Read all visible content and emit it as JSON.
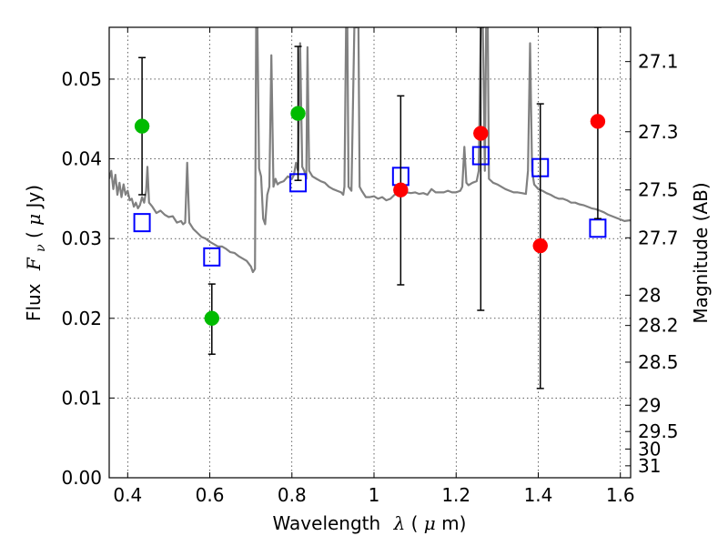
{
  "chart_data": {
    "type": "scatter",
    "xlabel_text": "Wavelength",
    "xlabel_symbol": "λ",
    "xlabel_unit_open": " (",
    "xlabel_unit_mu": "μ",
    "xlabel_unit_rest": "m)",
    "ylabel_text": "Flux",
    "ylabel_symbol": "F",
    "ylabel_sub": "ν",
    "ylabel_unit_open": "  (",
    "ylabel_unit_mu": "μ",
    "ylabel_unit_rest": "Jy)",
    "y2label": "Magnitude (AB)",
    "xlim": [
      0.355,
      1.625
    ],
    "ylim": [
      0.0,
      0.0565
    ],
    "grid": true,
    "xticks": [
      0.4,
      0.6,
      0.8,
      1.0,
      1.2,
      1.4,
      1.6
    ],
    "xtick_labels": [
      "0.4",
      "0.6",
      "0.8",
      "1",
      "1.2",
      "1.4",
      "1.6"
    ],
    "yticks": [
      0.0,
      0.01,
      0.02,
      0.03,
      0.04,
      0.05
    ],
    "ytick_labels": [
      "0.00",
      "0.01",
      "0.02",
      "0.03",
      "0.04",
      "0.05"
    ],
    "y2ticks": [
      {
        "label": "27.1",
        "flux": 0.0522
      },
      {
        "label": "27.3",
        "flux": 0.0434
      },
      {
        "label": "27.5",
        "flux": 0.0361
      },
      {
        "label": "27.7",
        "flux": 0.0301
      },
      {
        "label": "28",
        "flux": 0.0229
      },
      {
        "label": "28.2",
        "flux": 0.0191
      },
      {
        "label": "28.5",
        "flux": 0.0145
      },
      {
        "label": "29",
        "flux": 0.0091
      },
      {
        "label": "29.5",
        "flux": 0.0058
      },
      {
        "label": "30",
        "flux": 0.0036
      },
      {
        "label": "31",
        "flux": 0.0015
      }
    ],
    "series": [
      {
        "kind": "spectrum",
        "color": "#808080",
        "points": [
          [
            0.355,
            0.0375
          ],
          [
            0.36,
            0.0385
          ],
          [
            0.365,
            0.0362
          ],
          [
            0.37,
            0.038
          ],
          [
            0.375,
            0.0355
          ],
          [
            0.38,
            0.037
          ],
          [
            0.385,
            0.0352
          ],
          [
            0.39,
            0.0368
          ],
          [
            0.395,
            0.0355
          ],
          [
            0.4,
            0.036
          ],
          [
            0.405,
            0.0348
          ],
          [
            0.41,
            0.035
          ],
          [
            0.415,
            0.034
          ],
          [
            0.42,
            0.0345
          ],
          [
            0.425,
            0.0338
          ],
          [
            0.43,
            0.0342
          ],
          [
            0.435,
            0.0352
          ],
          [
            0.44,
            0.0345
          ],
          [
            0.445,
            0.036
          ],
          [
            0.448,
            0.039
          ],
          [
            0.452,
            0.0345
          ],
          [
            0.46,
            0.034
          ],
          [
            0.47,
            0.0332
          ],
          [
            0.48,
            0.0335
          ],
          [
            0.49,
            0.033
          ],
          [
            0.5,
            0.0327
          ],
          [
            0.51,
            0.0328
          ],
          [
            0.52,
            0.032
          ],
          [
            0.53,
            0.0322
          ],
          [
            0.535,
            0.0318
          ],
          [
            0.54,
            0.032
          ],
          [
            0.545,
            0.0395
          ],
          [
            0.55,
            0.032
          ],
          [
            0.56,
            0.0312
          ],
          [
            0.57,
            0.0307
          ],
          [
            0.58,
            0.0302
          ],
          [
            0.59,
            0.03
          ],
          [
            0.6,
            0.0296
          ],
          [
            0.61,
            0.0293
          ],
          [
            0.62,
            0.029
          ],
          [
            0.63,
            0.029
          ],
          [
            0.64,
            0.0287
          ],
          [
            0.65,
            0.0283
          ],
          [
            0.66,
            0.0282
          ],
          [
            0.67,
            0.0278
          ],
          [
            0.68,
            0.0275
          ],
          [
            0.69,
            0.0272
          ],
          [
            0.7,
            0.0265
          ],
          [
            0.705,
            0.0258
          ],
          [
            0.71,
            0.0262
          ],
          [
            0.713,
            0.0565
          ],
          [
            0.716,
            0.0565
          ],
          [
            0.72,
            0.0388
          ],
          [
            0.725,
            0.0378
          ],
          [
            0.73,
            0.0325
          ],
          [
            0.735,
            0.0318
          ],
          [
            0.74,
            0.0355
          ],
          [
            0.745,
            0.0365
          ],
          [
            0.75,
            0.053
          ],
          [
            0.755,
            0.0365
          ],
          [
            0.76,
            0.0375
          ],
          [
            0.765,
            0.0368
          ],
          [
            0.77,
            0.037
          ],
          [
            0.78,
            0.0372
          ],
          [
            0.79,
            0.0378
          ],
          [
            0.8,
            0.0375
          ],
          [
            0.805,
            0.038
          ],
          [
            0.81,
            0.0395
          ],
          [
            0.815,
            0.0385
          ],
          [
            0.82,
            0.0545
          ],
          [
            0.825,
            0.039
          ],
          [
            0.83,
            0.0385
          ],
          [
            0.835,
            0.0375
          ],
          [
            0.838,
            0.054
          ],
          [
            0.842,
            0.0385
          ],
          [
            0.85,
            0.0378
          ],
          [
            0.86,
            0.0375
          ],
          [
            0.87,
            0.0372
          ],
          [
            0.88,
            0.037
          ],
          [
            0.89,
            0.0365
          ],
          [
            0.9,
            0.0362
          ],
          [
            0.91,
            0.036
          ],
          [
            0.92,
            0.0358
          ],
          [
            0.925,
            0.0355
          ],
          [
            0.928,
            0.0365
          ],
          [
            0.932,
            0.0565
          ],
          [
            0.935,
            0.0565
          ],
          [
            0.938,
            0.0365
          ],
          [
            0.945,
            0.036
          ],
          [
            0.952,
            0.0565
          ],
          [
            0.955,
            0.0565
          ],
          [
            0.958,
            0.0565
          ],
          [
            0.962,
            0.0565
          ],
          [
            0.965,
            0.0365
          ],
          [
            0.97,
            0.036
          ],
          [
            0.98,
            0.0352
          ],
          [
            0.99,
            0.0352
          ],
          [
            1.0,
            0.0353
          ],
          [
            1.01,
            0.035
          ],
          [
            1.02,
            0.0352
          ],
          [
            1.03,
            0.0348
          ],
          [
            1.04,
            0.035
          ],
          [
            1.05,
            0.0355
          ],
          [
            1.06,
            0.0357
          ],
          [
            1.07,
            0.0358
          ],
          [
            1.08,
            0.0358
          ],
          [
            1.09,
            0.0357
          ],
          [
            1.1,
            0.0358
          ],
          [
            1.11,
            0.0356
          ],
          [
            1.12,
            0.0357
          ],
          [
            1.13,
            0.0355
          ],
          [
            1.14,
            0.0362
          ],
          [
            1.15,
            0.0358
          ],
          [
            1.16,
            0.0358
          ],
          [
            1.17,
            0.0358
          ],
          [
            1.18,
            0.036
          ],
          [
            1.19,
            0.0358
          ],
          [
            1.2,
            0.0358
          ],
          [
            1.21,
            0.036
          ],
          [
            1.215,
            0.0365
          ],
          [
            1.22,
            0.0415
          ],
          [
            1.225,
            0.037
          ],
          [
            1.23,
            0.0367
          ],
          [
            1.24,
            0.037
          ],
          [
            1.25,
            0.0372
          ],
          [
            1.255,
            0.0385
          ],
          [
            1.26,
            0.0565
          ],
          [
            1.265,
            0.0565
          ],
          [
            1.27,
            0.0385
          ],
          [
            1.273,
            0.0565
          ],
          [
            1.277,
            0.0565
          ],
          [
            1.28,
            0.0375
          ],
          [
            1.29,
            0.037
          ],
          [
            1.3,
            0.0368
          ],
          [
            1.31,
            0.0365
          ],
          [
            1.32,
            0.0362
          ],
          [
            1.33,
            0.036
          ],
          [
            1.34,
            0.0358
          ],
          [
            1.35,
            0.0358
          ],
          [
            1.36,
            0.0357
          ],
          [
            1.37,
            0.0356
          ],
          [
            1.375,
            0.0385
          ],
          [
            1.38,
            0.0545
          ],
          [
            1.385,
            0.0385
          ],
          [
            1.39,
            0.0368
          ],
          [
            1.4,
            0.0362
          ],
          [
            1.41,
            0.036
          ],
          [
            1.42,
            0.0357
          ],
          [
            1.43,
            0.0355
          ],
          [
            1.44,
            0.0352
          ],
          [
            1.45,
            0.035
          ],
          [
            1.46,
            0.035
          ],
          [
            1.47,
            0.0348
          ],
          [
            1.48,
            0.0345
          ],
          [
            1.49,
            0.0345
          ],
          [
            1.5,
            0.0343
          ],
          [
            1.51,
            0.0342
          ],
          [
            1.52,
            0.034
          ],
          [
            1.53,
            0.0338
          ],
          [
            1.54,
            0.0337
          ],
          [
            1.55,
            0.0335
          ],
          [
            1.56,
            0.0333
          ],
          [
            1.57,
            0.033
          ],
          [
            1.58,
            0.0328
          ],
          [
            1.59,
            0.0326
          ],
          [
            1.6,
            0.0324
          ],
          [
            1.61,
            0.0322
          ],
          [
            1.625,
            0.0323
          ]
        ]
      },
      {
        "kind": "model_photometry",
        "marker": "open-square",
        "color": "#0000ff",
        "points": [
          [
            0.435,
            0.032
          ],
          [
            0.605,
            0.0277
          ],
          [
            0.815,
            0.037
          ],
          [
            1.065,
            0.0378
          ],
          [
            1.26,
            0.0404
          ],
          [
            1.405,
            0.0389
          ],
          [
            1.545,
            0.0313
          ]
        ]
      },
      {
        "kind": "observed_optical",
        "marker": "filled-circle",
        "color": "#00bb00",
        "points": [
          {
            "x": 0.435,
            "y": 0.0441,
            "err_low": 0.0355,
            "err_high": 0.0527
          },
          {
            "x": 0.605,
            "y": 0.02,
            "err_low": 0.0155,
            "err_high": 0.0243
          },
          {
            "x": 0.815,
            "y": 0.0457,
            "err_low": 0.0373,
            "err_high": 0.0541
          }
        ]
      },
      {
        "kind": "observed_nir",
        "marker": "filled-circle",
        "color": "#ff0000",
        "points": [
          {
            "x": 1.065,
            "y": 0.0361,
            "err_low": 0.0242,
            "err_high": 0.0479
          },
          {
            "x": 1.26,
            "y": 0.0432,
            "err_low": 0.021,
            "err_high": 0.0565
          },
          {
            "x": 1.405,
            "y": 0.0291,
            "err_low": 0.0112,
            "err_high": 0.0469
          },
          {
            "x": 1.545,
            "y": 0.0447,
            "err_low": 0.0325,
            "err_high": 0.0565
          }
        ]
      }
    ]
  }
}
